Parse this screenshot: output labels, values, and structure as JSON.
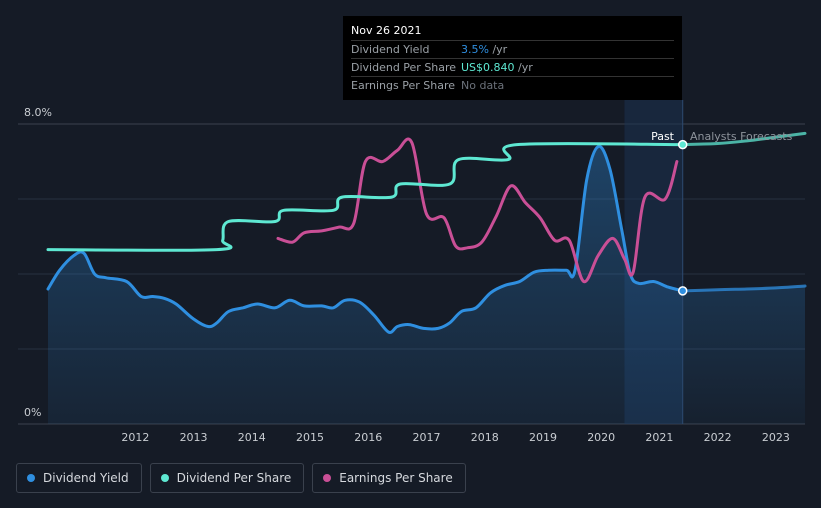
{
  "tooltip": {
    "date": "Nov 26 2021",
    "rows": [
      {
        "label": "Dividend Yield",
        "value": "3.5%",
        "unit": " /yr",
        "color": "#2f8fe0"
      },
      {
        "label": "Dividend Per Share",
        "value": "US$0.840",
        "unit": " /yr",
        "color": "#5ee8d2"
      },
      {
        "label": "Earnings Per Share",
        "value": "No data",
        "unit": "",
        "color": "#6b717a"
      }
    ]
  },
  "labels": {
    "past": "Past",
    "forecast": "Analysts Forecasts"
  },
  "legend": [
    {
      "label": "Dividend Yield",
      "color": "#2f8fe0"
    },
    {
      "label": "Dividend Per Share",
      "color": "#5ee8d2"
    },
    {
      "label": "Earnings Per Share",
      "color": "#c94f96"
    }
  ],
  "chart_data": {
    "type": "line",
    "y_ticks": [
      "8.0%",
      "0%"
    ],
    "ylim": [
      0,
      8
    ],
    "xlim": [
      2011.0,
      2024.0
    ],
    "x_ticks": [
      2012,
      2013,
      2014,
      2015,
      2016,
      2017,
      2018,
      2019,
      2020,
      2021,
      2022,
      2023
    ],
    "current_x": 2021.9,
    "grid": true,
    "legend_position": "bottom-left",
    "series": [
      {
        "name": "Dividend Yield",
        "color": "#2f8fe0",
        "filled": true,
        "points": [
          [
            2011.0,
            3.6
          ],
          [
            2011.2,
            4.1
          ],
          [
            2011.45,
            4.5
          ],
          [
            2011.62,
            4.55
          ],
          [
            2011.8,
            4.0
          ],
          [
            2012.0,
            3.9
          ],
          [
            2012.35,
            3.8
          ],
          [
            2012.6,
            3.4
          ],
          [
            2012.8,
            3.4
          ],
          [
            2013.0,
            3.35
          ],
          [
            2013.2,
            3.2
          ],
          [
            2013.5,
            2.8
          ],
          [
            2013.75,
            2.6
          ],
          [
            2013.9,
            2.7
          ],
          [
            2014.1,
            3.0
          ],
          [
            2014.35,
            3.1
          ],
          [
            2014.6,
            3.2
          ],
          [
            2014.9,
            3.1
          ],
          [
            2015.15,
            3.3
          ],
          [
            2015.4,
            3.15
          ],
          [
            2015.7,
            3.15
          ],
          [
            2015.9,
            3.1
          ],
          [
            2016.1,
            3.3
          ],
          [
            2016.35,
            3.25
          ],
          [
            2016.6,
            2.9
          ],
          [
            2016.85,
            2.45
          ],
          [
            2017.0,
            2.6
          ],
          [
            2017.2,
            2.65
          ],
          [
            2017.45,
            2.55
          ],
          [
            2017.7,
            2.55
          ],
          [
            2017.9,
            2.7
          ],
          [
            2018.1,
            3.0
          ],
          [
            2018.35,
            3.1
          ],
          [
            2018.6,
            3.5
          ],
          [
            2018.85,
            3.7
          ],
          [
            2019.1,
            3.8
          ],
          [
            2019.35,
            4.05
          ],
          [
            2019.6,
            4.1
          ],
          [
            2019.9,
            4.1
          ],
          [
            2020.05,
            4.1
          ],
          [
            2020.25,
            6.5
          ],
          [
            2020.45,
            7.4
          ],
          [
            2020.65,
            6.8
          ],
          [
            2020.85,
            5.2
          ],
          [
            2021.0,
            4.0
          ],
          [
            2021.15,
            3.75
          ],
          [
            2021.4,
            3.8
          ],
          [
            2021.65,
            3.65
          ],
          [
            2021.9,
            3.55
          ]
        ]
      },
      {
        "name": "Dividend Yield forecast",
        "color": "#2f8fe0",
        "filled": true,
        "dim": true,
        "points": [
          [
            2021.9,
            3.55
          ],
          [
            2022.5,
            3.58
          ],
          [
            2023.0,
            3.6
          ],
          [
            2023.5,
            3.63
          ],
          [
            2024.0,
            3.68
          ]
        ]
      },
      {
        "name": "Dividend Per Share",
        "color": "#5ee8d2",
        "points": [
          [
            2011.0,
            4.65
          ],
          [
            2013.9,
            4.65
          ],
          [
            2014.0,
            4.9
          ],
          [
            2014.1,
            5.4
          ],
          [
            2014.9,
            5.4
          ],
          [
            2015.05,
            5.7
          ],
          [
            2015.9,
            5.7
          ],
          [
            2016.05,
            6.05
          ],
          [
            2016.9,
            6.05
          ],
          [
            2017.05,
            6.4
          ],
          [
            2017.9,
            6.4
          ],
          [
            2018.05,
            7.05
          ],
          [
            2018.9,
            7.05
          ],
          [
            2019.05,
            7.45
          ],
          [
            2021.9,
            7.45
          ]
        ]
      },
      {
        "name": "Dividend Per Share forecast",
        "color": "#5ee8d2",
        "dim": true,
        "points": [
          [
            2021.9,
            7.45
          ],
          [
            2022.5,
            7.48
          ],
          [
            2023.0,
            7.55
          ],
          [
            2023.5,
            7.65
          ],
          [
            2024.0,
            7.75
          ]
        ]
      },
      {
        "name": "Earnings Per Share",
        "color": "#c94f96",
        "points": [
          [
            2014.95,
            4.95
          ],
          [
            2015.2,
            4.85
          ],
          [
            2015.4,
            5.1
          ],
          [
            2015.7,
            5.15
          ],
          [
            2016.0,
            5.25
          ],
          [
            2016.25,
            5.35
          ],
          [
            2016.45,
            7.0
          ],
          [
            2016.75,
            7.0
          ],
          [
            2017.0,
            7.3
          ],
          [
            2017.25,
            7.5
          ],
          [
            2017.5,
            5.6
          ],
          [
            2017.8,
            5.5
          ],
          [
            2018.0,
            4.75
          ],
          [
            2018.2,
            4.7
          ],
          [
            2018.45,
            4.85
          ],
          [
            2018.7,
            5.55
          ],
          [
            2018.95,
            6.35
          ],
          [
            2019.2,
            5.9
          ],
          [
            2019.45,
            5.5
          ],
          [
            2019.7,
            4.9
          ],
          [
            2019.95,
            4.9
          ],
          [
            2020.2,
            3.8
          ],
          [
            2020.45,
            4.5
          ],
          [
            2020.7,
            4.95
          ],
          [
            2020.9,
            4.4
          ],
          [
            2021.05,
            4.05
          ],
          [
            2021.25,
            6.05
          ],
          [
            2021.6,
            6.0
          ],
          [
            2021.8,
            7.0
          ]
        ]
      }
    ]
  }
}
